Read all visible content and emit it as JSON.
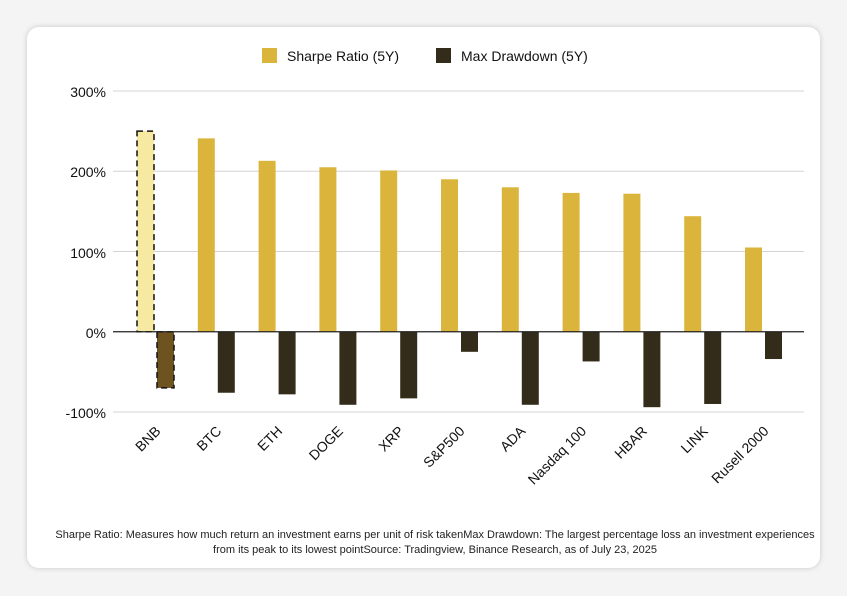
{
  "chart_data": {
    "type": "bar",
    "categories": [
      "BNB",
      "BTC",
      "ETH",
      "DOGE",
      "XRP",
      "S&P500",
      "ADA",
      "Nasdaq 100",
      "HBAR",
      "LINK",
      "Rusell 2000"
    ],
    "series": [
      {
        "name": "Sharpe Ratio (5Y)",
        "color": "#dbb53b",
        "values": [
          250,
          241,
          213,
          205,
          201,
          190,
          180,
          173,
          172,
          144,
          105
        ]
      },
      {
        "name": "Max Drawdown (5Y)",
        "color": "#332c1a",
        "values": [
          -70,
          -76,
          -78,
          -91,
          -83,
          -25,
          -91,
          -37,
          -94,
          -90,
          -34
        ]
      }
    ],
    "highlight": {
      "category": "BNB",
      "sharpe_color": "#f7e8a2",
      "drawdown_color": "#6e5321"
    },
    "yticks": [
      "300%",
      "200%",
      "100%",
      "0%",
      "-100%"
    ],
    "ylim": [
      -100,
      300
    ],
    "grid": true,
    "legend_position": "top-center",
    "caption": "Sharpe Ratio: Measures how much return an investment earns per unit of risk takenMax Drawdown: The largest percentage loss an investment experiences from its peak to its lowest pointSource: Tradingview, Binance Research, as of July 23, 2025"
  }
}
